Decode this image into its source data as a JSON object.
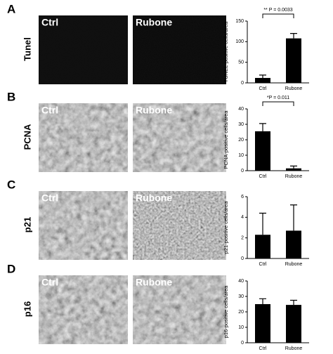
{
  "panels": [
    {
      "letter": "A",
      "stain": "Tunel",
      "image_labels": [
        "Ctrl",
        "Rubone"
      ]
    },
    {
      "letter": "B",
      "stain": "PCNA",
      "image_labels": [
        "Ctrl",
        "Rubone"
      ]
    },
    {
      "letter": "C",
      "stain": "p21",
      "image_labels": [
        "Ctrl",
        "Rubone"
      ]
    },
    {
      "letter": "D",
      "stain": "p16",
      "image_labels": [
        "Ctrl",
        "Rubone"
      ]
    }
  ],
  "chart_data": [
    {
      "type": "bar",
      "ylabel": "TUNEL-positive cells/area",
      "categories": [
        "Ctrl",
        "Rubone"
      ],
      "values": [
        12,
        108
      ],
      "errors": [
        7,
        12
      ],
      "color": "#000000",
      "ylim": [
        0,
        150
      ],
      "yticks": [
        0,
        50,
        100,
        150
      ],
      "annotation": "** P = 0.0033"
    },
    {
      "type": "bar",
      "ylabel": "PCNA-positive cells/area",
      "categories": [
        "Ctrl",
        "Rubone"
      ],
      "values": [
        25.5,
        1.5
      ],
      "errors": [
        5,
        1.5
      ],
      "color": "#000000",
      "ylim": [
        0,
        40
      ],
      "yticks": [
        0,
        10,
        20,
        30,
        40
      ],
      "annotation": "*P = 0.011"
    },
    {
      "type": "bar",
      "ylabel": "p21-positive cells/area",
      "categories": [
        "Ctrl",
        "Rubone"
      ],
      "values": [
        2.3,
        2.7
      ],
      "errors": [
        2.1,
        2.5
      ],
      "color": "#000000",
      "ylim": [
        0,
        6
      ],
      "yticks": [
        0,
        2,
        4,
        6
      ]
    },
    {
      "type": "bar",
      "ylabel": "p16-positive cells/area",
      "categories": [
        "Ctrl",
        "Rubone"
      ],
      "values": [
        25,
        24.5
      ],
      "errors": [
        3.5,
        3
      ],
      "color": "#000000",
      "ylim": [
        0,
        40
      ],
      "yticks": [
        0,
        10,
        20,
        30,
        40
      ]
    }
  ]
}
